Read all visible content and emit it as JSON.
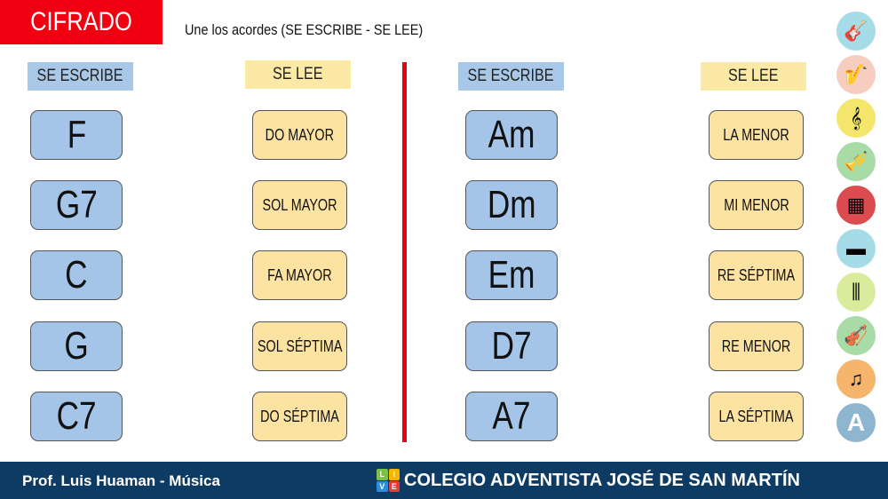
{
  "title": "CIFRADO",
  "instruction": "Une los acordes (SE ESCRIBE - SE LEE)",
  "left": {
    "write_header": "SE ESCRIBE",
    "read_header": "SE LEE",
    "chords": [
      "F",
      "G7",
      "C",
      "G",
      "C7"
    ],
    "readings": [
      "DO MAYOR",
      "SOL MAYOR",
      "FA MAYOR",
      "SOL SÉPTIMA",
      "DO SÉPTIMA"
    ]
  },
  "right": {
    "write_header": "SE ESCRIBE",
    "read_header": "SE LEE",
    "chords": [
      "Am",
      "Dm",
      "Em",
      "D7",
      "A7"
    ],
    "readings": [
      "LA MENOR",
      "MI MENOR",
      "RE SÉPTIMA",
      "RE MENOR",
      "LA SÉPTIMA"
    ]
  },
  "sidebar_icons": [
    {
      "name": "guitar-icon",
      "color": "#a6dbe8",
      "glyph": "🎸"
    },
    {
      "name": "saxophone-icon",
      "color": "#f6cdbf",
      "glyph": "🎷"
    },
    {
      "name": "harp-icon",
      "color": "#f4e66c",
      "glyph": "𝄞"
    },
    {
      "name": "trumpet-icon",
      "color": "#a9dba6",
      "glyph": "🎺"
    },
    {
      "name": "accordion-icon",
      "color": "#dc4b50",
      "glyph": "▦"
    },
    {
      "name": "piano-icon",
      "color": "#a6dbe8",
      "glyph": "▬"
    },
    {
      "name": "xylophone-icon",
      "color": "#d9ec9e",
      "glyph": "⫼"
    },
    {
      "name": "violin-icon",
      "color": "#a9dba6",
      "glyph": "🎻"
    },
    {
      "name": "sheet-music-icon",
      "color": "#f5b56a",
      "glyph": "♫"
    },
    {
      "name": "adventist-logo-icon",
      "color": "#8fb6d1",
      "glyph": "A"
    }
  ],
  "footer": {
    "teacher": "Prof. Luis Huaman - Música",
    "school": "COLEGIO ADVENTISTA JOSÉ DE SAN MARTÍN",
    "logo_letters": [
      "L",
      "I",
      "V",
      "E"
    ]
  }
}
